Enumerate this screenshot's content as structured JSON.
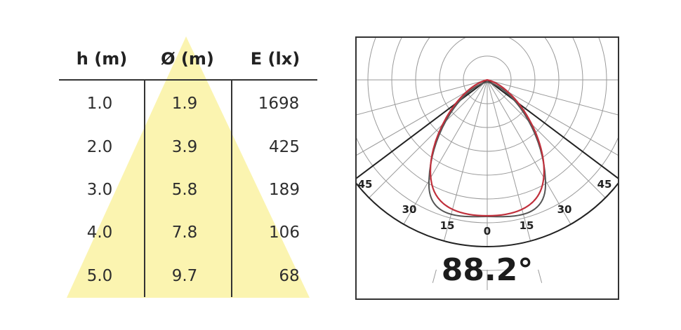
{
  "table": {
    "headers": {
      "height": "h (m)",
      "diameter": "Ø (m)",
      "illuminance": "E (lx)"
    },
    "rows": [
      {
        "h": "1.0",
        "d": "1.9",
        "e": "1698"
      },
      {
        "h": "2.0",
        "d": "3.9",
        "e": "425"
      },
      {
        "h": "3.0",
        "d": "5.8",
        "e": "189"
      },
      {
        "h": "4.0",
        "d": "7.8",
        "e": "106"
      },
      {
        "h": "5.0",
        "d": "9.7",
        "e": "68"
      }
    ],
    "cone_color": "#fbf4b0"
  },
  "polar": {
    "beam_angle": "88.2°",
    "angle_labels": [
      "45",
      "30",
      "15",
      "0",
      "15",
      "30",
      "45"
    ],
    "curve_color": "#c0303c",
    "curve_shadow_color": "#555555"
  }
}
